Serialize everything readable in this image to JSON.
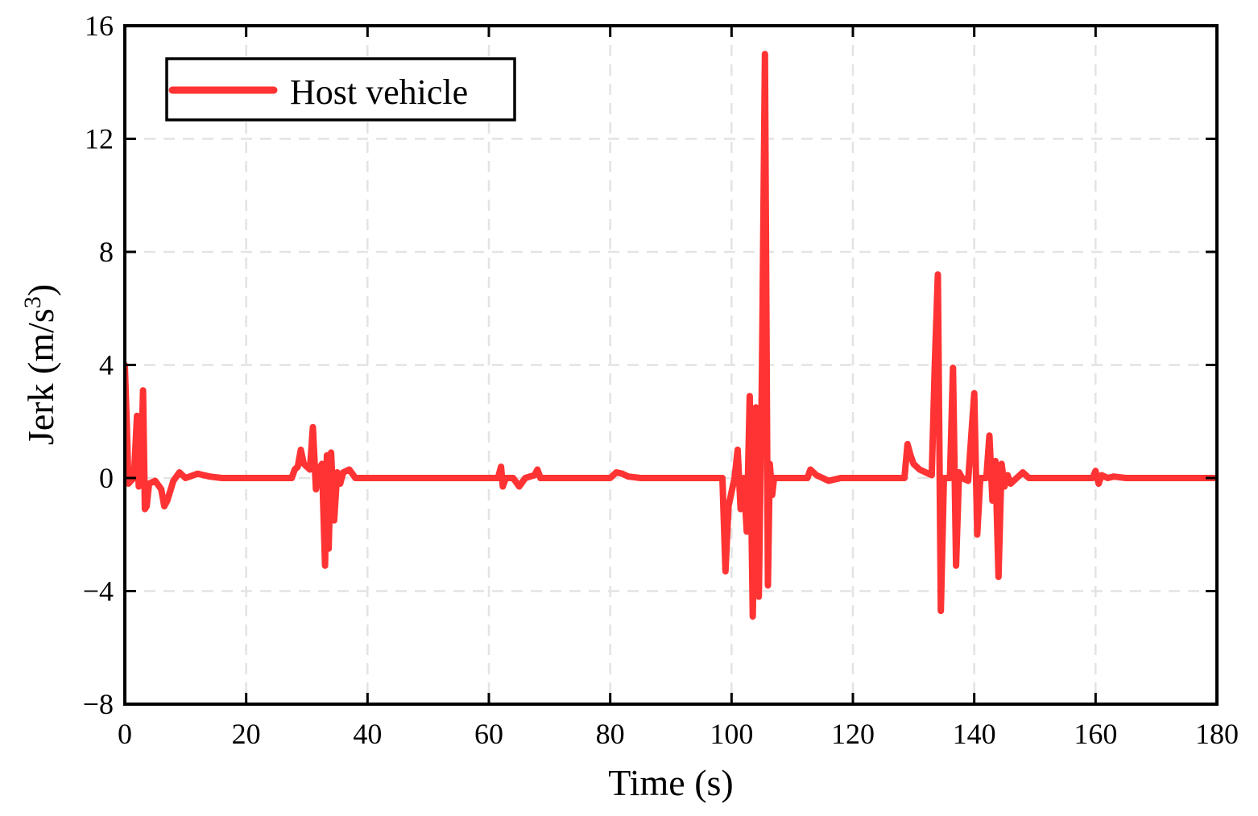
{
  "chart_data": {
    "type": "line",
    "xlabel": "Time (s)",
    "ylabel_main": "Jerk (m/s",
    "ylabel_sup": "3",
    "ylabel_close": ")",
    "xlim": [
      0,
      180
    ],
    "ylim": [
      -8,
      16
    ],
    "xticks": [
      0,
      20,
      40,
      60,
      80,
      100,
      120,
      140,
      160,
      180
    ],
    "yticks": [
      -8,
      -4,
      0,
      4,
      8,
      12,
      16
    ],
    "ytick_labels": [
      "−8",
      "−4",
      "0",
      "4",
      "8",
      "12",
      "16"
    ],
    "grid": true,
    "legend_position": "top-left",
    "series": [
      {
        "name": "Host vehicle",
        "color": "#ff3333",
        "points": [
          [
            0,
            4.0
          ],
          [
            0.3,
            2.0
          ],
          [
            0.6,
            -0.2
          ],
          [
            1.0,
            -0.1
          ],
          [
            1.5,
            0.0
          ],
          [
            2.0,
            2.2
          ],
          [
            2.3,
            -0.3
          ],
          [
            2.7,
            0.5
          ],
          [
            3.0,
            3.1
          ],
          [
            3.3,
            -1.1
          ],
          [
            3.6,
            -1.0
          ],
          [
            4.0,
            -0.2
          ],
          [
            5.0,
            -0.1
          ],
          [
            6.0,
            -0.4
          ],
          [
            6.5,
            -1.0
          ],
          [
            7.0,
            -0.8
          ],
          [
            8.0,
            -0.1
          ],
          [
            9.0,
            0.2
          ],
          [
            10.0,
            0.0
          ],
          [
            12.0,
            0.15
          ],
          [
            14.0,
            0.05
          ],
          [
            16.0,
            0.0
          ],
          [
            20.0,
            0.0
          ],
          [
            25.0,
            0.0
          ],
          [
            27.5,
            0.0
          ],
          [
            28.0,
            0.3
          ],
          [
            28.5,
            0.4
          ],
          [
            29.0,
            1.0
          ],
          [
            29.5,
            0.5
          ],
          [
            30.0,
            0.4
          ],
          [
            30.5,
            0.3
          ],
          [
            31.0,
            1.8
          ],
          [
            31.5,
            -0.4
          ],
          [
            32.0,
            0.3
          ],
          [
            32.5,
            0.5
          ],
          [
            33.0,
            -3.1
          ],
          [
            33.3,
            0.8
          ],
          [
            33.6,
            -2.5
          ],
          [
            34.0,
            0.9
          ],
          [
            34.5,
            -1.5
          ],
          [
            35.0,
            0.2
          ],
          [
            35.5,
            -0.2
          ],
          [
            36.0,
            0.2
          ],
          [
            37.0,
            0.3
          ],
          [
            38.0,
            0.0
          ],
          [
            40.0,
            0.0
          ],
          [
            45.0,
            0.0
          ],
          [
            50.0,
            0.0
          ],
          [
            55.0,
            0.0
          ],
          [
            61.5,
            0.0
          ],
          [
            62.0,
            0.4
          ],
          [
            62.3,
            -0.3
          ],
          [
            62.8,
            0.0
          ],
          [
            64.0,
            0.0
          ],
          [
            65.0,
            -0.3
          ],
          [
            66.0,
            0.0
          ],
          [
            67.5,
            0.1
          ],
          [
            68.0,
            0.3
          ],
          [
            68.5,
            0.0
          ],
          [
            70.0,
            0.0
          ],
          [
            75.0,
            0.0
          ],
          [
            80.0,
            0.0
          ],
          [
            81.0,
            0.2
          ],
          [
            82.0,
            0.15
          ],
          [
            83.0,
            0.05
          ],
          [
            85.0,
            0.0
          ],
          [
            90.0,
            0.0
          ],
          [
            95.0,
            0.0
          ],
          [
            98.5,
            0.0
          ],
          [
            99.0,
            -3.3
          ],
          [
            99.5,
            -1.0
          ],
          [
            100.0,
            -0.5
          ],
          [
            100.5,
            0.0
          ],
          [
            101.0,
            1.0
          ],
          [
            101.5,
            -1.1
          ],
          [
            102.0,
            0.0
          ],
          [
            102.5,
            -1.9
          ],
          [
            103.0,
            2.9
          ],
          [
            103.5,
            -4.9
          ],
          [
            104.0,
            2.5
          ],
          [
            104.5,
            -4.2
          ],
          [
            105.0,
            3.5
          ],
          [
            105.5,
            15.0
          ],
          [
            106.0,
            -3.8
          ],
          [
            106.3,
            0.5
          ],
          [
            106.7,
            -0.6
          ],
          [
            107.0,
            0.0
          ],
          [
            110.0,
            0.0
          ],
          [
            112.5,
            0.0
          ],
          [
            113.0,
            0.3
          ],
          [
            114.0,
            0.1
          ],
          [
            116.0,
            -0.1
          ],
          [
            118.0,
            0.0
          ],
          [
            120.0,
            0.0
          ],
          [
            125.0,
            0.0
          ],
          [
            128.5,
            0.0
          ],
          [
            129.0,
            1.2
          ],
          [
            129.5,
            0.8
          ],
          [
            130.0,
            0.5
          ],
          [
            131.0,
            0.3
          ],
          [
            132.0,
            0.2
          ],
          [
            133.0,
            0.1
          ],
          [
            133.5,
            4.0
          ],
          [
            134.0,
            7.2
          ],
          [
            134.5,
            -4.7
          ],
          [
            135.0,
            0.0
          ],
          [
            136.0,
            0.0
          ],
          [
            136.5,
            3.9
          ],
          [
            137.0,
            -3.1
          ],
          [
            137.5,
            0.2
          ],
          [
            138.0,
            0.0
          ],
          [
            139.0,
            -0.1
          ],
          [
            140.0,
            3.0
          ],
          [
            140.5,
            -2.0
          ],
          [
            141.0,
            0.0
          ],
          [
            142.0,
            0.0
          ],
          [
            142.5,
            1.5
          ],
          [
            143.0,
            -0.8
          ],
          [
            143.5,
            0.6
          ],
          [
            144.0,
            -3.5
          ],
          [
            144.5,
            0.5
          ],
          [
            145.0,
            -0.3
          ],
          [
            145.5,
            0.1
          ],
          [
            146.0,
            -0.2
          ],
          [
            147.0,
            0.0
          ],
          [
            148.0,
            0.2
          ],
          [
            149.0,
            0.0
          ],
          [
            150.0,
            0.0
          ],
          [
            155.0,
            0.0
          ],
          [
            159.5,
            0.0
          ],
          [
            160.0,
            0.25
          ],
          [
            160.5,
            -0.2
          ],
          [
            161.0,
            0.1
          ],
          [
            162.0,
            0.0
          ],
          [
            163.0,
            0.05
          ],
          [
            165.0,
            0.0
          ],
          [
            170.0,
            0.0
          ],
          [
            175.0,
            0.0
          ],
          [
            180.0,
            0.0
          ]
        ]
      }
    ]
  }
}
